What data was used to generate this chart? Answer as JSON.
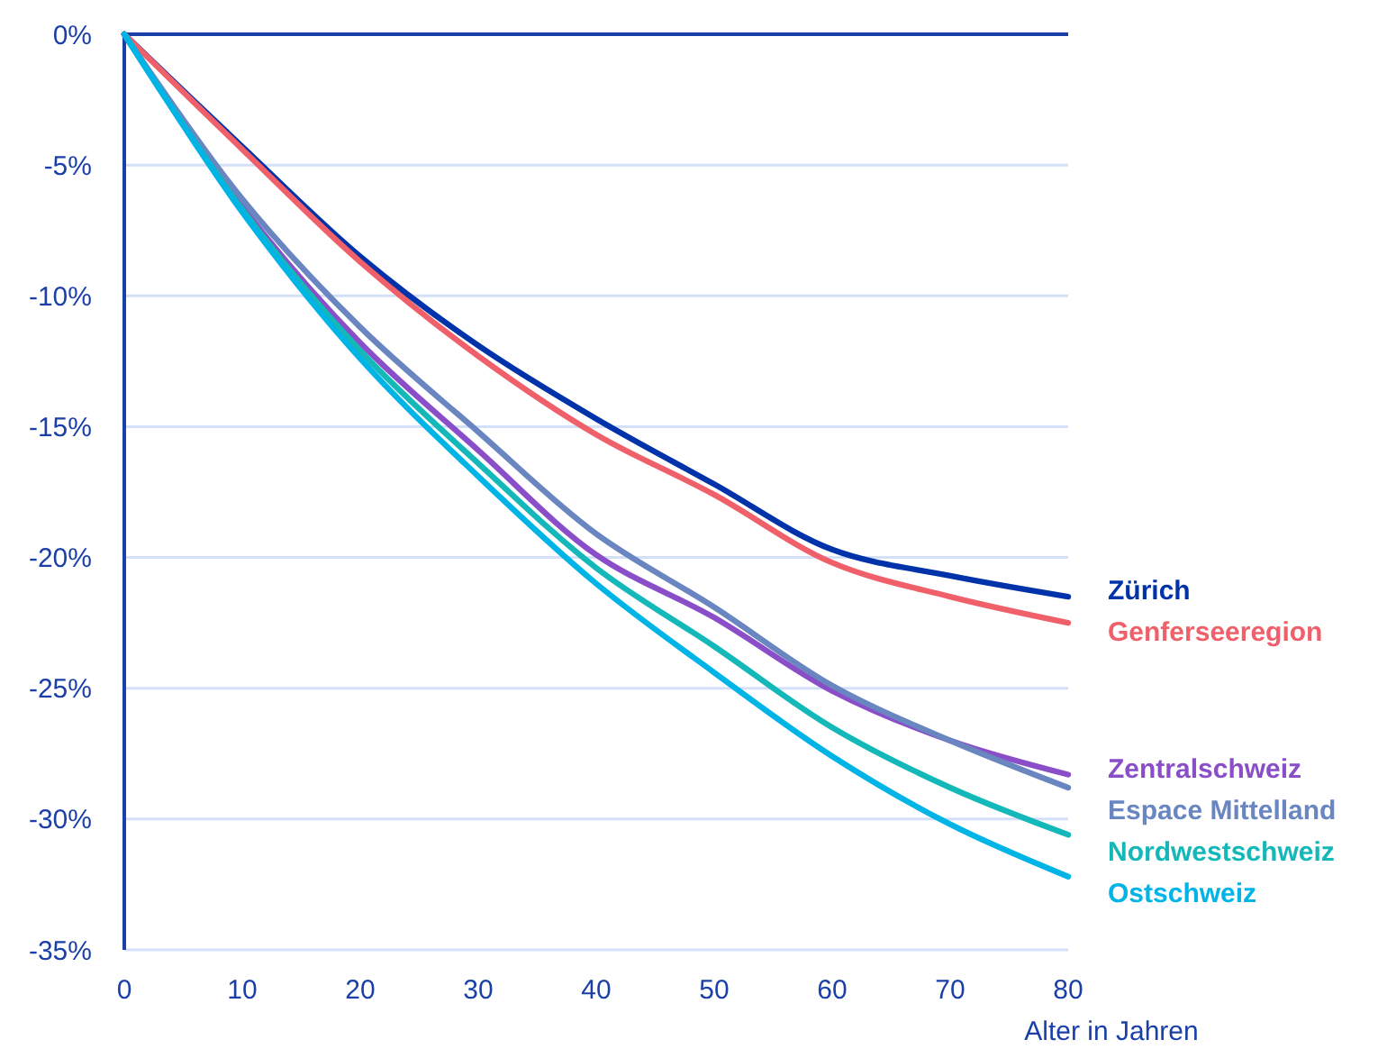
{
  "chart_data": {
    "type": "line",
    "xlabel": "Alter in Jahren",
    "x": [
      0,
      10,
      20,
      30,
      40,
      50,
      60,
      70,
      80
    ],
    "xlim": [
      0,
      80
    ],
    "xticks": [
      0,
      10,
      20,
      30,
      40,
      50,
      60,
      70,
      80
    ],
    "ylim": [
      -35,
      0
    ],
    "yticks": [
      {
        "value": -35,
        "label": "-35%"
      },
      {
        "value": -30,
        "label": "-30%"
      },
      {
        "value": -25,
        "label": "-25%"
      },
      {
        "value": -20,
        "label": "-20%"
      },
      {
        "value": -15,
        "label": "-15%"
      },
      {
        "value": -10,
        "label": "-10%"
      },
      {
        "value": -5,
        "label": "-5%"
      },
      {
        "value": 0,
        "label": "0%"
      }
    ],
    "grid": "y",
    "marker": "none",
    "line_style": "solid",
    "ref_lines": [
      {
        "axis": "y",
        "value": 0,
        "color": "#1a3fa8"
      }
    ],
    "series": [
      {
        "name": "Zürich",
        "color": "#0033aa",
        "values": [
          0,
          -4.3,
          -8.5,
          -11.9,
          -14.7,
          -17.2,
          -19.7,
          -20.7,
          -21.5
        ]
      },
      {
        "name": "Genferseeregion",
        "color": "#f0606a",
        "values": [
          0,
          -4.4,
          -8.7,
          -12.3,
          -15.3,
          -17.6,
          -20.2,
          -21.5,
          -22.5
        ]
      },
      {
        "name": "Zentralschweiz",
        "color": "#8a4fc8",
        "values": [
          0,
          -6.6,
          -11.8,
          -15.9,
          -19.9,
          -22.3,
          -25.1,
          -27.0,
          -28.3
        ]
      },
      {
        "name": "Espace Mittelland",
        "color": "#6a86c0",
        "values": [
          0,
          -6.3,
          -11.2,
          -15.2,
          -19.1,
          -21.9,
          -24.9,
          -27.0,
          -28.8
        ]
      },
      {
        "name": "Nordwestschweiz",
        "color": "#14b8b8",
        "values": [
          0,
          -6.7,
          -12.1,
          -16.4,
          -20.4,
          -23.4,
          -26.5,
          -28.8,
          -30.6
        ]
      },
      {
        "name": "Ostschweiz",
        "color": "#00b4e6",
        "values": [
          0,
          -6.8,
          -12.4,
          -16.9,
          -21.0,
          -24.4,
          -27.6,
          -30.2,
          -32.2
        ]
      }
    ]
  }
}
